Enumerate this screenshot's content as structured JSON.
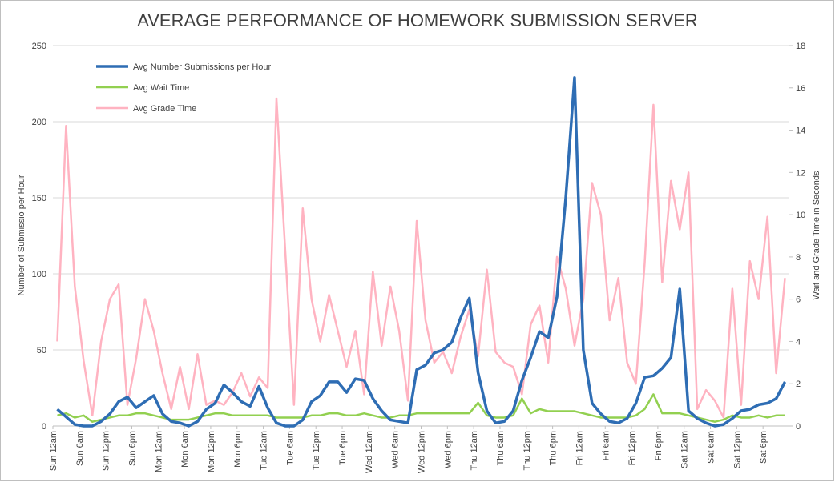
{
  "chart_data": {
    "type": "line",
    "title": "AVERAGE PERFORMANCE OF HOMEWORK SUBMISSION SERVER",
    "y_label": "Number of Submissio per Hour",
    "y2_label": "Wait and Grade Time in Seconds",
    "categories": [
      "Sun 12am",
      null,
      null,
      "Sun 6am",
      null,
      null,
      "Sun 12pm",
      null,
      null,
      "Sun 6pm",
      null,
      null,
      "Mon 12am",
      null,
      null,
      "Mon 6am",
      null,
      null,
      "Mon 12pm",
      null,
      null,
      "Mon 6pm",
      null,
      null,
      "Tue 12am",
      null,
      null,
      "Tue 6am",
      null,
      null,
      "Tue 12pm",
      null,
      null,
      "Tue 6pm",
      null,
      null,
      "Wed 12am",
      null,
      null,
      "Wed 6am",
      null,
      null,
      "Wed 12pm",
      null,
      null,
      "Wed 6pm",
      null,
      null,
      "Thu 12am",
      null,
      null,
      "Thu 6am",
      null,
      null,
      "Thu 12pm",
      null,
      null,
      "Thu 6pm",
      null,
      null,
      "Fri 12am",
      null,
      null,
      "Fri 6am",
      null,
      null,
      "Fri 12pm",
      null,
      null,
      "Fri 6pm",
      null,
      null,
      "Sat 12am",
      null,
      null,
      "Sat 6am",
      null,
      null,
      "Sat 12pm",
      null,
      null,
      "Sat 6pm",
      null,
      null
    ],
    "series": [
      {
        "name": "Avg Number Submissions per Hour",
        "color": "#2e6db4",
        "axis": "y",
        "values": [
          11,
          6,
          1,
          0,
          0,
          3,
          8,
          16,
          19,
          12,
          16,
          20,
          8,
          3,
          2,
          0,
          3,
          11,
          15,
          27,
          22,
          16,
          13,
          26,
          12,
          2,
          0,
          0,
          4,
          16,
          20,
          29,
          29,
          22,
          31,
          30,
          18,
          10,
          4,
          3,
          2,
          37,
          40,
          48,
          50,
          55,
          71,
          84,
          35,
          10,
          2,
          3,
          10,
          30,
          45,
          62,
          58,
          85,
          150,
          229,
          50,
          15,
          8,
          3,
          2,
          5,
          15,
          32,
          33,
          38,
          45,
          90,
          10,
          5,
          2,
          0,
          1,
          5,
          10,
          11,
          14,
          15,
          18,
          29
        ]
      },
      {
        "name": "Avg Wait Time",
        "color": "#92d050",
        "axis": "y2",
        "values": [
          0.5,
          0.6,
          0.4,
          0.5,
          0.2,
          0.3,
          0.4,
          0.5,
          0.5,
          0.6,
          0.6,
          0.5,
          0.4,
          0.3,
          0.3,
          0.3,
          0.4,
          0.5,
          0.6,
          0.6,
          0.5,
          0.5,
          0.5,
          0.5,
          0.5,
          0.4,
          0.4,
          0.4,
          0.4,
          0.5,
          0.5,
          0.6,
          0.6,
          0.5,
          0.5,
          0.6,
          0.5,
          0.4,
          0.4,
          0.5,
          0.5,
          0.6,
          0.6,
          0.6,
          0.6,
          0.6,
          0.6,
          0.6,
          1.1,
          0.5,
          0.4,
          0.4,
          0.5,
          1.3,
          0.6,
          0.8,
          0.7,
          0.7,
          0.7,
          0.7,
          0.6,
          0.5,
          0.4,
          0.4,
          0.4,
          0.4,
          0.5,
          0.8,
          1.5,
          0.6,
          0.6,
          0.6,
          0.5,
          0.4,
          0.3,
          0.2,
          0.3,
          0.5,
          0.4,
          0.4,
          0.5,
          0.4,
          0.5,
          0.5
        ]
      },
      {
        "name": "Avg Grade Time",
        "color": "#ffb3c1",
        "axis": "y2",
        "values": [
          4.0,
          14.2,
          6.6,
          3.1,
          0.5,
          4.0,
          6.0,
          6.7,
          1.0,
          3.2,
          6.0,
          4.5,
          2.5,
          0.8,
          2.8,
          0.8,
          3.4,
          1.0,
          1.2,
          1.0,
          1.6,
          2.5,
          1.4,
          2.3,
          1.8,
          15.5,
          8.3,
          1.0,
          10.3,
          6.0,
          4.0,
          6.2,
          4.5,
          2.8,
          4.5,
          1.5,
          7.3,
          3.8,
          6.6,
          4.5,
          1.2,
          9.7,
          5.0,
          3.0,
          3.5,
          2.5,
          4.2,
          5.5,
          3.3,
          7.4,
          3.5,
          3.0,
          2.8,
          1.5,
          4.8,
          5.7,
          3.0,
          8.0,
          6.5,
          3.8,
          6.0,
          11.5,
          10.0,
          5.0,
          7.0,
          3.0,
          2.0,
          7.7,
          15.2,
          6.8,
          11.6,
          9.3,
          12.0,
          0.8,
          1.7,
          1.2,
          0.4,
          6.5,
          1.0,
          7.8,
          6.0,
          9.9,
          2.5,
          7.0
        ]
      }
    ],
    "ylim": [
      0,
      250
    ],
    "yticks": [
      0,
      50,
      100,
      150,
      200,
      250
    ],
    "y2lim": [
      0,
      18
    ],
    "y2ticks": [
      0,
      2,
      4,
      6,
      8,
      10,
      12,
      14,
      16,
      18
    ],
    "grid": true,
    "legend": "top-left"
  }
}
